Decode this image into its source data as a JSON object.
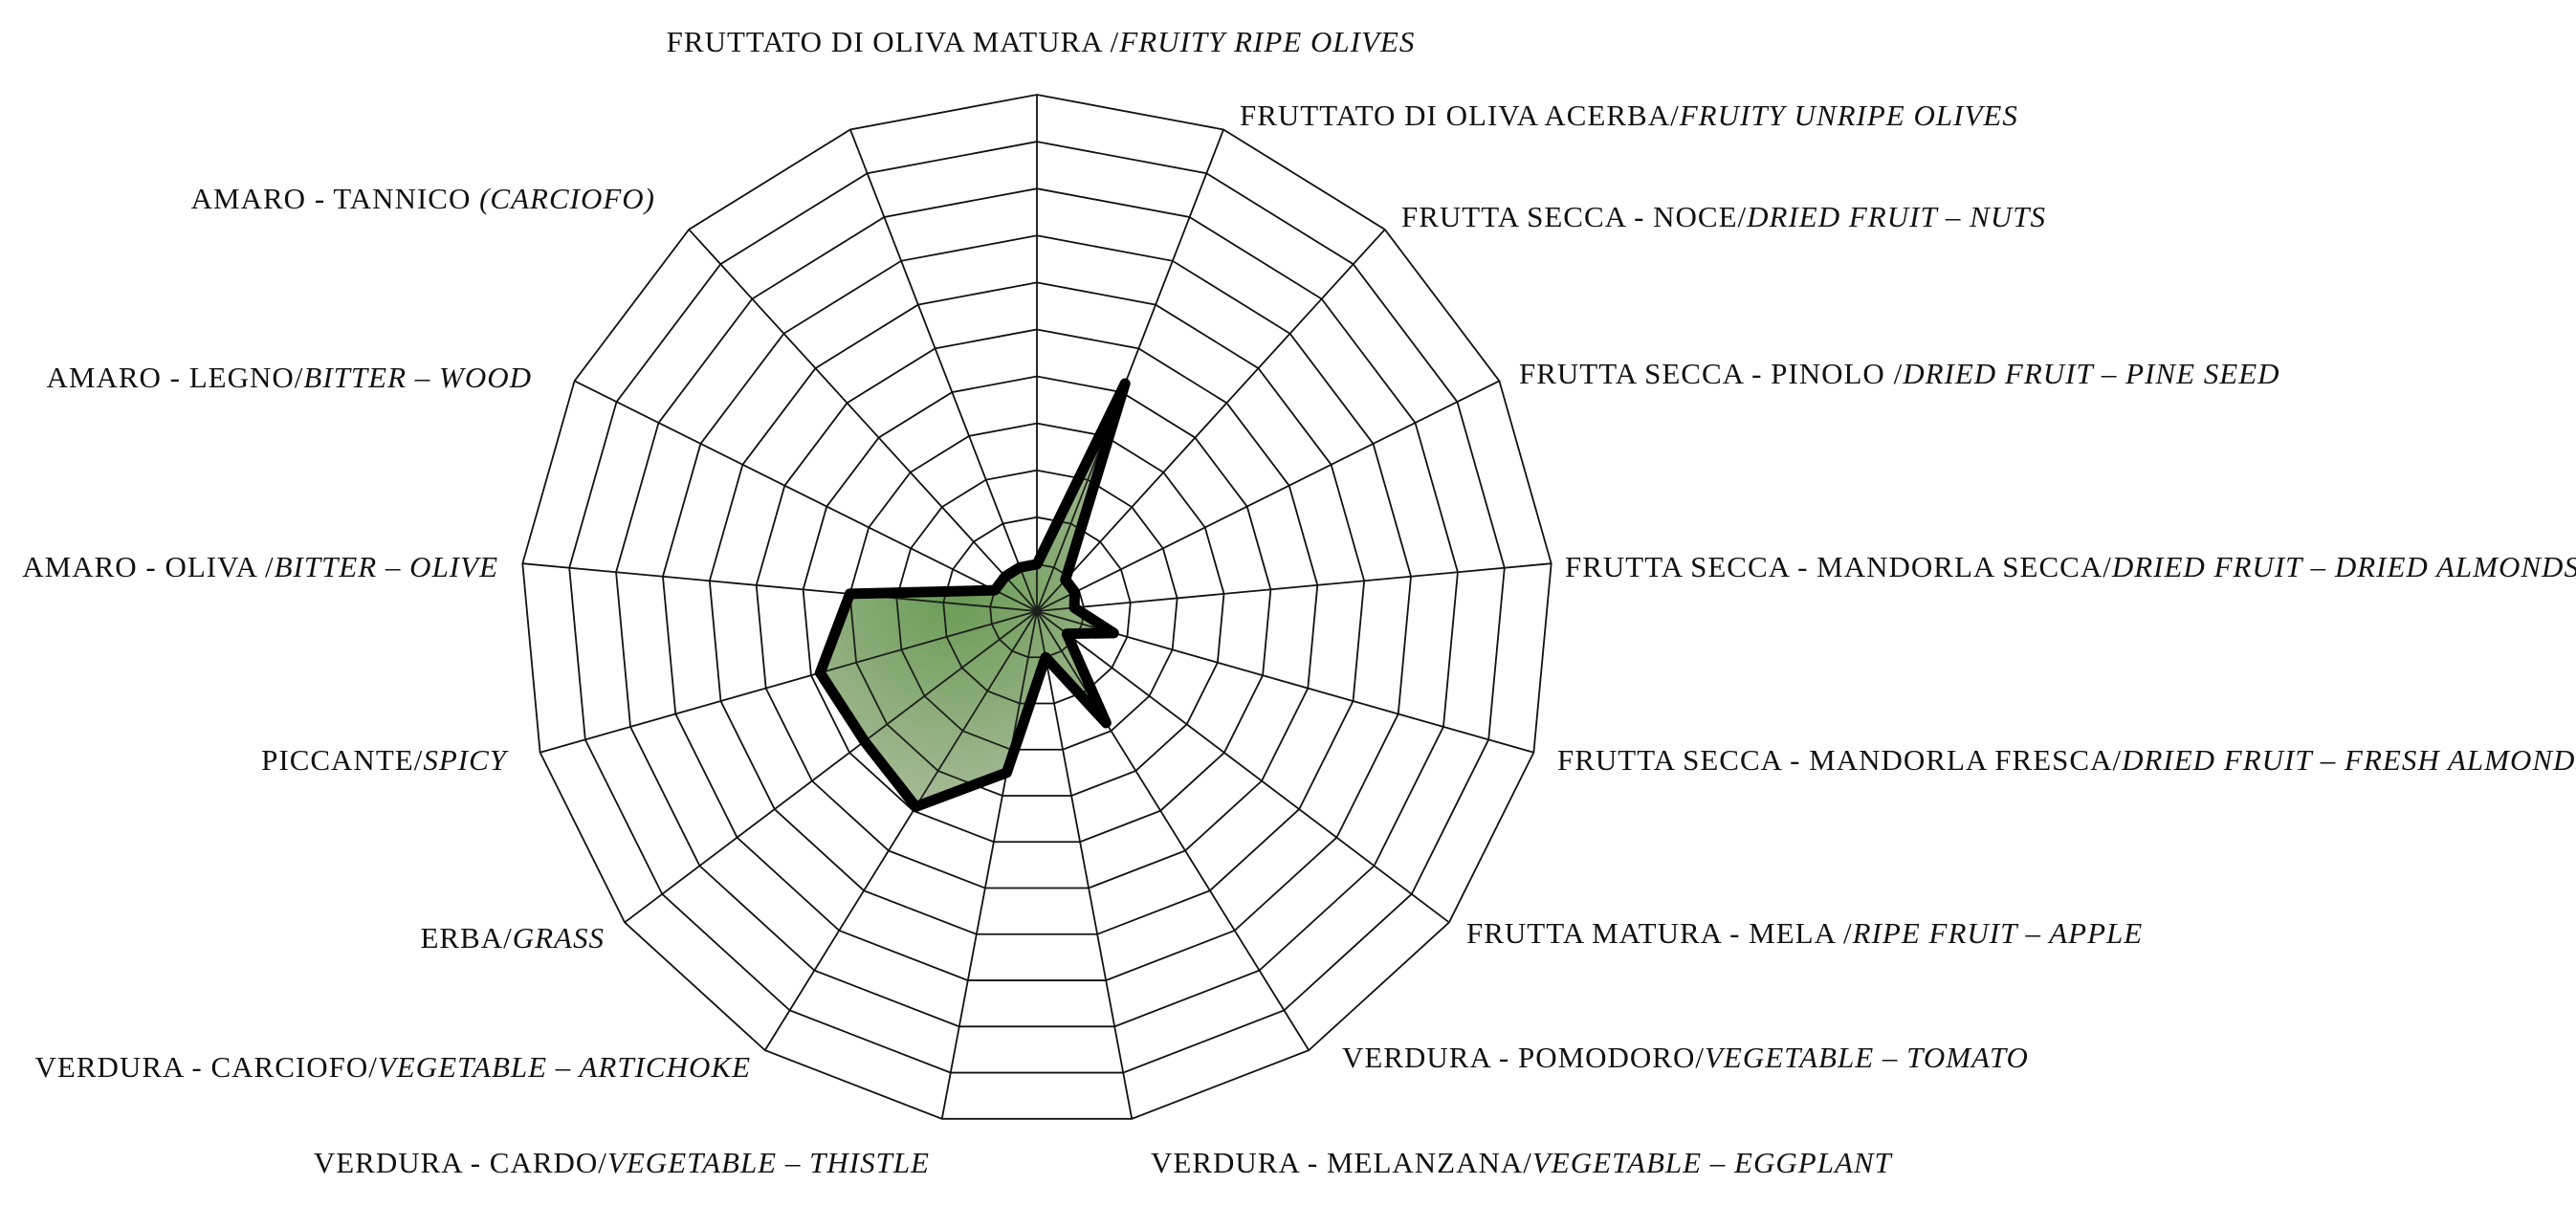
{
  "chart_data": {
    "type": "radar",
    "title": "",
    "rings": 11,
    "range": [
      0,
      11
    ],
    "grid": true,
    "colors": {
      "fill_center": "#6a9b55",
      "fill_edge": "#c3c9b6",
      "line": "#000000",
      "grid": "#111111"
    },
    "axes": [
      {
        "label": "FRUTTATO DI OLIVA MATURA /",
        "label_en": "FRUITY RIPE OLIVES",
        "value": 1.0
      },
      {
        "label": "FRUTTATO DI OLIVA ACERBA/",
        "label_en": "FRUITY UNRIPE OLIVES",
        "value": 5.2
      },
      {
        "label": "FRUTTA SECCA - NOCE/",
        "label_en": "DRIED FRUIT – NUTS",
        "value": 0.9
      },
      {
        "label": "FRUTTA SECCA - PINOLO /",
        "label_en": "DRIED FRUIT – PINE SEED",
        "value": 0.9
      },
      {
        "label": "FRUTTA SECCA - MANDORLA SECCA/",
        "label_en": "DRIED FRUIT – DRIED ALMONDS",
        "value": 0.8
      },
      {
        "label": "FRUTTA SECCA - MANDORLA FRESCA/",
        "label_en": "DRIED FRUIT – FRESH ALMONDS",
        "value": 1.7
      },
      {
        "label": "FRUTTA MATURA - MELA /",
        "label_en": "RIPE FRUIT – APPLE",
        "value": 0.8
      },
      {
        "label": "VERDURA - POMODORO/",
        "label_en": "VEGETABLE – TOMATO",
        "value": 2.8
      },
      {
        "label": "VERDURA - MELANZANA/",
        "label_en": "VEGETABLE – EGGPLANT",
        "value": 1.0
      },
      {
        "label": "VERDURA - CARDO/",
        "label_en": "VEGETABLE – THISTLE",
        "value": 3.5
      },
      {
        "label": "VERDURA - CARCIOFO/",
        "label_en": "VEGETABLE – ARTICHOKE",
        "value": 4.9
      },
      {
        "label": "ERBA/",
        "label_en": "GRASS",
        "value": 4.6
      },
      {
        "label": "PICCANTE/",
        "label_en": "SPICY",
        "value": 4.8
      },
      {
        "label": "AMARO - OLIVA /",
        "label_en": "BITTER – OLIVE",
        "value": 4.0
      },
      {
        "label": "AMARO - LEGNO/",
        "label_en": "BITTER – WOOD",
        "value": 1.0
      },
      {
        "label": "AMARO - TANNICO ",
        "label_en": "(CARCIOFO)",
        "value": 1.0
      },
      {
        "label": "",
        "label_en": "",
        "value": 1.0
      }
    ]
  }
}
